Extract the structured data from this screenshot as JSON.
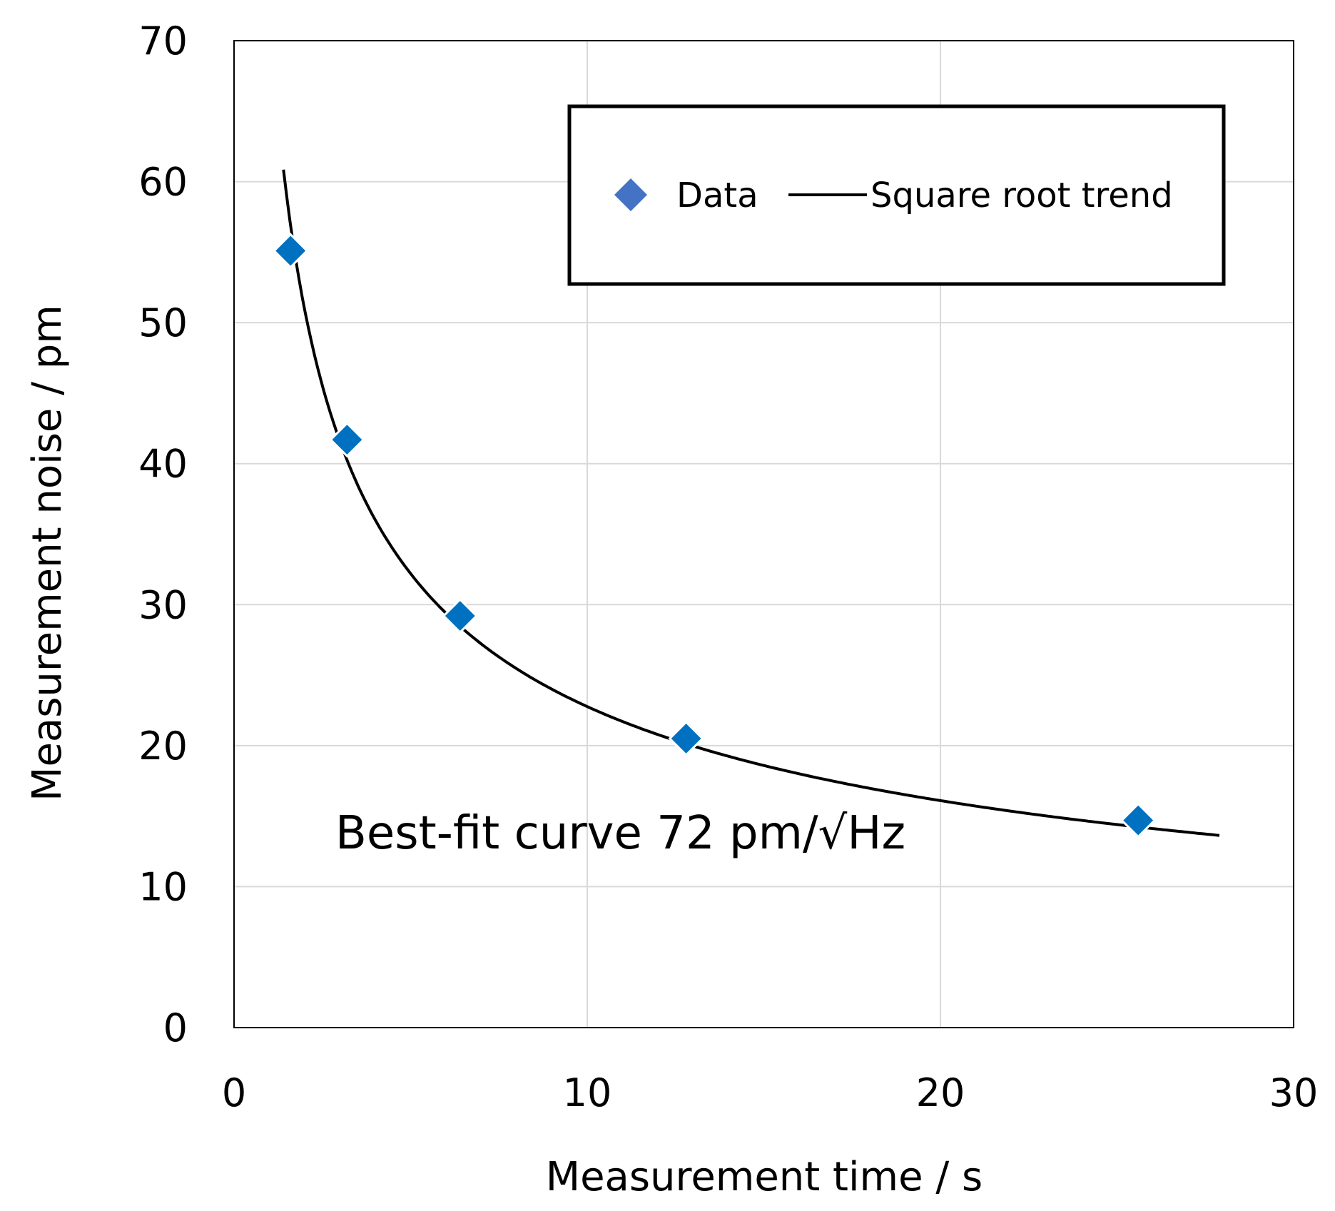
{
  "chart_data": {
    "type": "scatter",
    "xlabel": "Measurement time / s",
    "ylabel": "Measurement noise / pm",
    "xlim": [
      0,
      30
    ],
    "ylim": [
      0,
      70
    ],
    "xticks": [
      0,
      10,
      20,
      30
    ],
    "yticks": [
      0,
      10,
      20,
      30,
      40,
      50,
      60,
      70
    ],
    "grid": true,
    "legend_position": "top-right",
    "annotation": "Best-fit curve 72 pm/√Hz",
    "series": [
      {
        "name": "Data",
        "kind": "scatter",
        "marker": "diamond",
        "color": "#0070C0",
        "legend_color": "#4472C4",
        "points": [
          {
            "x": 1.6,
            "y": 55.1
          },
          {
            "x": 3.2,
            "y": 41.7
          },
          {
            "x": 6.4,
            "y": 29.2
          },
          {
            "x": 12.8,
            "y": 20.5
          },
          {
            "x": 25.6,
            "y": 14.7
          }
        ]
      },
      {
        "name": "Square root trend",
        "kind": "line",
        "color": "#000000",
        "coefficient": 72,
        "x_range": [
          1.4,
          27.9
        ]
      }
    ]
  }
}
